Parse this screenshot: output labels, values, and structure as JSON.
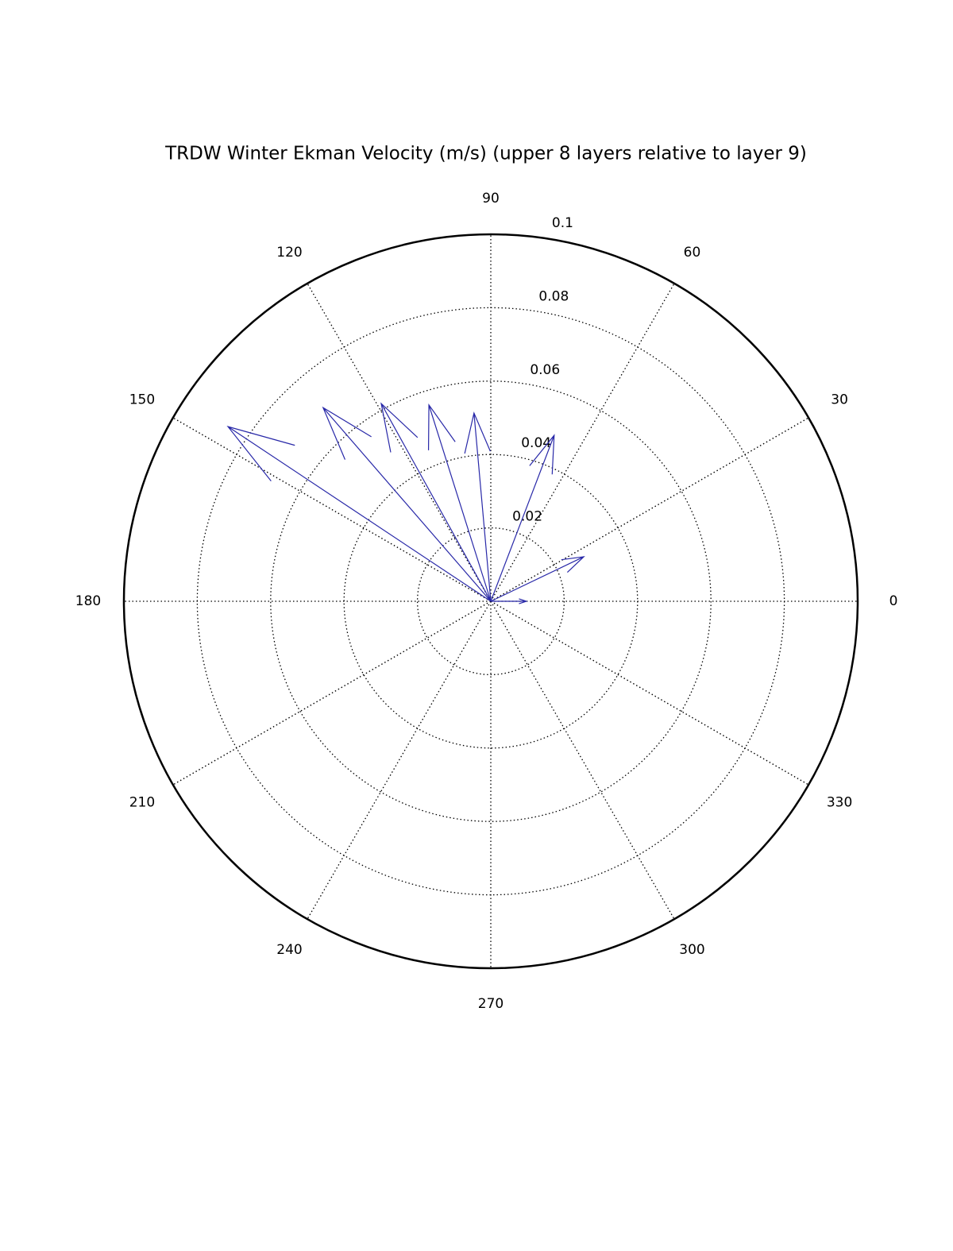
{
  "chart_data": {
    "type": "compass",
    "title": "TRDW Winter Ekman Velocity (m/s) (upper 8 layers relative to layer 9)",
    "rlim": [
      0,
      0.1
    ],
    "rticks": [
      0.02,
      0.04,
      0.06,
      0.08,
      0.1
    ],
    "thetaticks": [
      0,
      30,
      60,
      90,
      120,
      150,
      180,
      210,
      240,
      270,
      300,
      330
    ],
    "grid": true,
    "series": [
      {
        "color": "#2828a8",
        "theta": [
          0,
          25.6,
          69.1,
          95.1,
          107.5,
          119,
          130.9,
          146.4
        ],
        "r": [
          0.0097,
          0.0281,
          0.0484,
          0.0515,
          0.0561,
          0.0616,
          0.0698,
          0.086
        ]
      }
    ]
  }
}
